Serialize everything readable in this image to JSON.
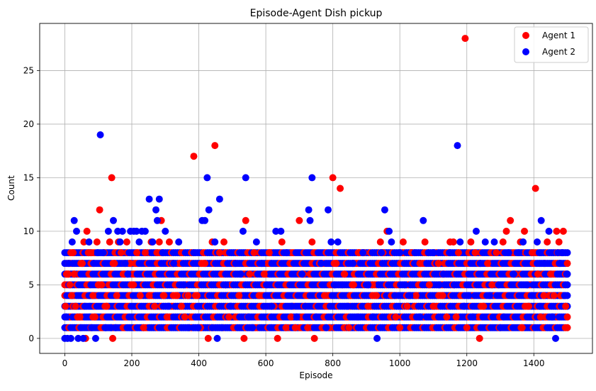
{
  "chart_data": {
    "type": "scatter",
    "title": "Episode-Agent Dish pickup",
    "xlabel": "Episode",
    "ylabel": "Count",
    "xlim": [
      -75,
      1575
    ],
    "ylim": [
      -1.4,
      29.4
    ],
    "xticks": [
      0,
      200,
      400,
      600,
      800,
      1000,
      1200,
      1400
    ],
    "yticks": [
      0,
      5,
      10,
      15,
      20,
      25
    ],
    "grid": true,
    "legend": "top-right",
    "series": [
      {
        "name": "Agent 1",
        "color": "#ff0000",
        "points": [
          [
            2,
            3
          ],
          [
            5,
            6
          ],
          [
            10,
            6
          ],
          [
            15,
            5
          ],
          [
            20,
            4
          ],
          [
            25,
            8
          ],
          [
            28,
            6
          ],
          [
            32,
            3
          ],
          [
            38,
            2
          ],
          [
            45,
            2
          ],
          [
            52,
            7
          ],
          [
            57,
            9
          ],
          [
            62,
            0
          ],
          [
            66,
            10
          ],
          [
            70,
            8
          ],
          [
            78,
            8
          ],
          [
            84,
            4
          ],
          [
            90,
            2
          ],
          [
            96,
            9
          ],
          [
            100,
            5
          ],
          [
            104,
            12
          ],
          [
            110,
            5
          ],
          [
            118,
            8
          ],
          [
            125,
            3
          ],
          [
            134,
            9
          ],
          [
            140,
            15
          ],
          [
            143,
            0
          ],
          [
            148,
            7
          ],
          [
            155,
            4
          ],
          [
            160,
            9
          ],
          [
            168,
            8
          ],
          [
            178,
            6
          ],
          [
            185,
            9
          ],
          [
            195,
            7
          ],
          [
            205,
            5
          ],
          [
            215,
            8
          ],
          [
            225,
            4
          ],
          [
            235,
            1
          ],
          [
            240,
            8
          ],
          [
            252,
            4
          ],
          [
            258,
            9
          ],
          [
            268,
            3
          ],
          [
            275,
            8
          ],
          [
            282,
            9
          ],
          [
            288,
            11
          ],
          [
            296,
            4
          ],
          [
            305,
            2
          ],
          [
            312,
            9
          ],
          [
            322,
            7
          ],
          [
            335,
            4
          ],
          [
            348,
            3
          ],
          [
            358,
            2
          ],
          [
            368,
            4
          ],
          [
            378,
            8
          ],
          [
            385,
            17
          ],
          [
            395,
            4
          ],
          [
            405,
            1
          ],
          [
            418,
            7
          ],
          [
            428,
            0
          ],
          [
            440,
            9
          ],
          [
            448,
            18
          ],
          [
            462,
            8
          ],
          [
            475,
            9
          ],
          [
            490,
            2
          ],
          [
            505,
            7
          ],
          [
            520,
            4
          ],
          [
            535,
            0
          ],
          [
            540,
            11
          ],
          [
            552,
            6
          ],
          [
            565,
            8
          ],
          [
            580,
            4
          ],
          [
            595,
            6
          ],
          [
            610,
            8
          ],
          [
            625,
            3
          ],
          [
            635,
            0
          ],
          [
            648,
            9
          ],
          [
            660,
            1
          ],
          [
            675,
            2
          ],
          [
            688,
            1
          ],
          [
            700,
            11
          ],
          [
            712,
            6
          ],
          [
            725,
            1
          ],
          [
            738,
            9
          ],
          [
            745,
            0
          ],
          [
            760,
            7
          ],
          [
            775,
            4
          ],
          [
            790,
            1
          ],
          [
            800,
            15
          ],
          [
            810,
            7
          ],
          [
            822,
            14
          ],
          [
            835,
            6
          ],
          [
            848,
            1
          ],
          [
            862,
            5
          ],
          [
            878,
            8
          ],
          [
            892,
            8
          ],
          [
            905,
            3
          ],
          [
            918,
            5
          ],
          [
            930,
            4
          ],
          [
            942,
            9
          ],
          [
            950,
            8
          ],
          [
            962,
            10
          ],
          [
            975,
            4
          ],
          [
            988,
            2
          ],
          [
            1000,
            1
          ],
          [
            1010,
            9
          ],
          [
            1022,
            3
          ],
          [
            1035,
            8
          ],
          [
            1048,
            4
          ],
          [
            1060,
            7
          ],
          [
            1075,
            9
          ],
          [
            1088,
            5
          ],
          [
            1100,
            3
          ],
          [
            1115,
            7
          ],
          [
            1128,
            4
          ],
          [
            1140,
            2
          ],
          [
            1150,
            9
          ],
          [
            1160,
            9
          ],
          [
            1168,
            2
          ],
          [
            1175,
            8
          ],
          [
            1195,
            28
          ],
          [
            1200,
            1
          ],
          [
            1212,
            9
          ],
          [
            1225,
            8
          ],
          [
            1238,
            0
          ],
          [
            1250,
            3
          ],
          [
            1262,
            7
          ],
          [
            1275,
            5
          ],
          [
            1288,
            8
          ],
          [
            1298,
            2
          ],
          [
            1308,
            9
          ],
          [
            1318,
            10
          ],
          [
            1330,
            11
          ],
          [
            1345,
            6
          ],
          [
            1360,
            9
          ],
          [
            1365,
            1
          ],
          [
            1372,
            10
          ],
          [
            1385,
            3
          ],
          [
            1395,
            8
          ],
          [
            1405,
            14
          ],
          [
            1412,
            6
          ],
          [
            1420,
            2
          ],
          [
            1430,
            4
          ],
          [
            1440,
            9
          ],
          [
            1450,
            6
          ],
          [
            1460,
            4
          ],
          [
            1468,
            10
          ],
          [
            1475,
            9
          ],
          [
            1480,
            4
          ],
          [
            1488,
            10
          ],
          [
            1495,
            3
          ]
        ]
      },
      {
        "name": "Agent 2",
        "color": "#0000ff",
        "points": [
          [
            0,
            0
          ],
          [
            4,
            2
          ],
          [
            8,
            0
          ],
          [
            12,
            7
          ],
          [
            18,
            0
          ],
          [
            22,
            9
          ],
          [
            28,
            11
          ],
          [
            35,
            10
          ],
          [
            40,
            0
          ],
          [
            48,
            1
          ],
          [
            55,
            0
          ],
          [
            60,
            3
          ],
          [
            72,
            9
          ],
          [
            80,
            1
          ],
          [
            86,
            7
          ],
          [
            92,
            0
          ],
          [
            98,
            8
          ],
          [
            106,
            19
          ],
          [
            115,
            8
          ],
          [
            122,
            1
          ],
          [
            130,
            10
          ],
          [
            138,
            1
          ],
          [
            145,
            11
          ],
          [
            152,
            1
          ],
          [
            158,
            10
          ],
          [
            165,
            9
          ],
          [
            172,
            10
          ],
          [
            180,
            7
          ],
          [
            188,
            6
          ],
          [
            196,
            10
          ],
          [
            206,
            10
          ],
          [
            214,
            10
          ],
          [
            222,
            9
          ],
          [
            230,
            10
          ],
          [
            240,
            10
          ],
          [
            252,
            13
          ],
          [
            262,
            9
          ],
          [
            272,
            12
          ],
          [
            276,
            11
          ],
          [
            282,
            13
          ],
          [
            292,
            8
          ],
          [
            300,
            10
          ],
          [
            310,
            3
          ],
          [
            325,
            7
          ],
          [
            340,
            9
          ],
          [
            355,
            5
          ],
          [
            370,
            1
          ],
          [
            385,
            8
          ],
          [
            398,
            1
          ],
          [
            410,
            11
          ],
          [
            418,
            11
          ],
          [
            425,
            15
          ],
          [
            430,
            12
          ],
          [
            440,
            1
          ],
          [
            448,
            9
          ],
          [
            455,
            0
          ],
          [
            462,
            13
          ],
          [
            470,
            1
          ],
          [
            480,
            5
          ],
          [
            495,
            3
          ],
          [
            510,
            7
          ],
          [
            525,
            6
          ],
          [
            532,
            10
          ],
          [
            540,
            15
          ],
          [
            548,
            2
          ],
          [
            560,
            1
          ],
          [
            572,
            9
          ],
          [
            588,
            7
          ],
          [
            602,
            5
          ],
          [
            618,
            3
          ],
          [
            630,
            10
          ],
          [
            645,
            10
          ],
          [
            662,
            8
          ],
          [
            678,
            3
          ],
          [
            692,
            2
          ],
          [
            708,
            6
          ],
          [
            718,
            3
          ],
          [
            728,
            12
          ],
          [
            732,
            11
          ],
          [
            738,
            15
          ],
          [
            750,
            2
          ],
          [
            765,
            7
          ],
          [
            780,
            1
          ],
          [
            786,
            12
          ],
          [
            795,
            9
          ],
          [
            806,
            5
          ],
          [
            815,
            9
          ],
          [
            828,
            5
          ],
          [
            845,
            3
          ],
          [
            860,
            7
          ],
          [
            875,
            2
          ],
          [
            890,
            8
          ],
          [
            905,
            5
          ],
          [
            920,
            2
          ],
          [
            932,
            0
          ],
          [
            945,
            8
          ],
          [
            955,
            12
          ],
          [
            968,
            10
          ],
          [
            975,
            9
          ],
          [
            985,
            4
          ],
          [
            1000,
            8
          ],
          [
            1015,
            5
          ],
          [
            1030,
            4
          ],
          [
            1045,
            8
          ],
          [
            1060,
            2
          ],
          [
            1070,
            11
          ],
          [
            1085,
            8
          ],
          [
            1100,
            8
          ],
          [
            1118,
            5
          ],
          [
            1130,
            6
          ],
          [
            1148,
            8
          ],
          [
            1162,
            5
          ],
          [
            1172,
            18
          ],
          [
            1180,
            9
          ],
          [
            1192,
            3
          ],
          [
            1205,
            4
          ],
          [
            1218,
            2
          ],
          [
            1228,
            10
          ],
          [
            1240,
            7
          ],
          [
            1255,
            9
          ],
          [
            1268,
            4
          ],
          [
            1282,
            9
          ],
          [
            1295,
            5
          ],
          [
            1300,
            1
          ],
          [
            1310,
            2
          ],
          [
            1325,
            8
          ],
          [
            1340,
            6
          ],
          [
            1355,
            8
          ],
          [
            1368,
            9
          ],
          [
            1380,
            5
          ],
          [
            1395,
            4
          ],
          [
            1410,
            9
          ],
          [
            1422,
            11
          ],
          [
            1432,
            7
          ],
          [
            1445,
            10
          ],
          [
            1455,
            2
          ],
          [
            1465,
            0
          ],
          [
            1472,
            8
          ],
          [
            1478,
            7
          ],
          [
            1485,
            8
          ],
          [
            1492,
            4
          ],
          [
            1498,
            6
          ]
        ]
      }
    ]
  }
}
